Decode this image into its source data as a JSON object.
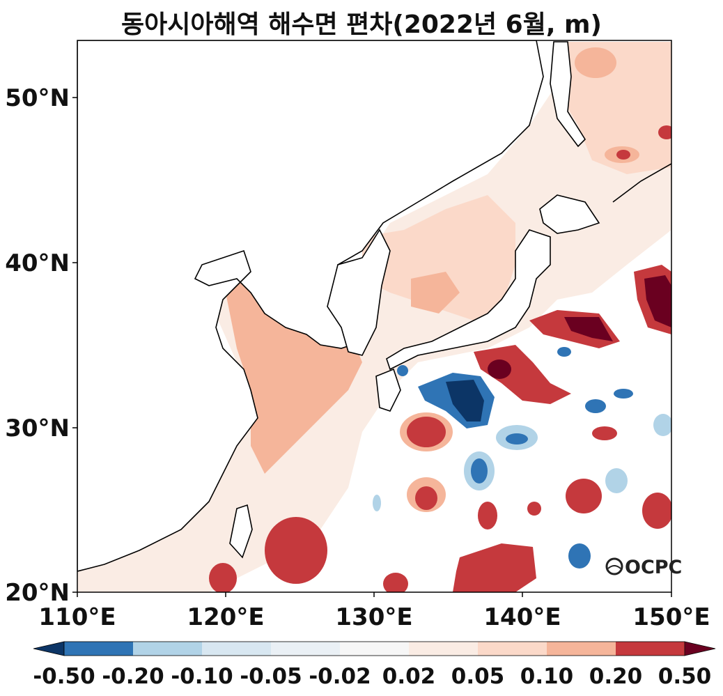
{
  "title": "동아시아해역 해수면 편차(2022년 6월, m)",
  "axes": {
    "lat_ticks": [
      "50°N",
      "40°N",
      "30°N",
      "20°N"
    ],
    "lon_ticks": [
      "110°E",
      "120°E",
      "130°E",
      "140°E",
      "150°E"
    ]
  },
  "colorbar": {
    "labels": [
      "-0.50",
      "-0.20",
      "-0.10",
      "-0.05",
      "-0.02",
      "0.02",
      "0.05",
      "0.10",
      "0.20",
      "0.50"
    ],
    "colors": [
      "#2f74b5",
      "#b1d3e7",
      "#d8e7f1",
      "#eaf0f5",
      "#f6f6f6",
      "#faece4",
      "#fbd9c9",
      "#f5b59a",
      "#c5393d"
    ],
    "under_color": "#0c3566",
    "over_color": "#6a0020"
  },
  "logo": "OCPC",
  "map_icon": "sea-level-anomaly-map"
}
